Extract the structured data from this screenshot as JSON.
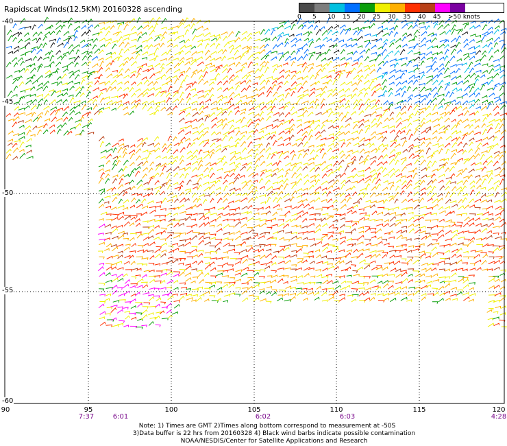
{
  "title": "Rapidscat Winds(12.5KM) 20160328 ascending",
  "scale": {
    "labels": [
      "0",
      "5",
      "10",
      "15",
      "20",
      "25",
      "30",
      "35",
      "40",
      "45",
      ">50 knots"
    ],
    "colors": [
      "#4a4a4a",
      "#7d7d7d",
      "#00c0e0",
      "#0070ff",
      "#0a9e0a",
      "#f0f000",
      "#ffb000",
      "#ff3000",
      "#b84018",
      "#ff00ff",
      "#7a00a0"
    ]
  },
  "axes": {
    "x_ticks": [
      "90",
      "95",
      "100",
      "105",
      "110",
      "115",
      "120"
    ],
    "y_ticks": [
      "-40",
      "-45",
      "-50",
      "-55",
      "-60"
    ]
  },
  "times": [
    "7:37",
    "6:01",
    "6:02",
    "6:03",
    "4:28"
  ],
  "notes": {
    "line1": "Note: 1) Times are GMT 2)Times along bottom correspond to measurement at -50S",
    "line2": "3)Data buffer is 22 hrs from 20160328 4) Black wind barbs indicate possible contamination",
    "line3": "NOAA/NESDIS/Center for Satellite Applications and Research"
  }
}
